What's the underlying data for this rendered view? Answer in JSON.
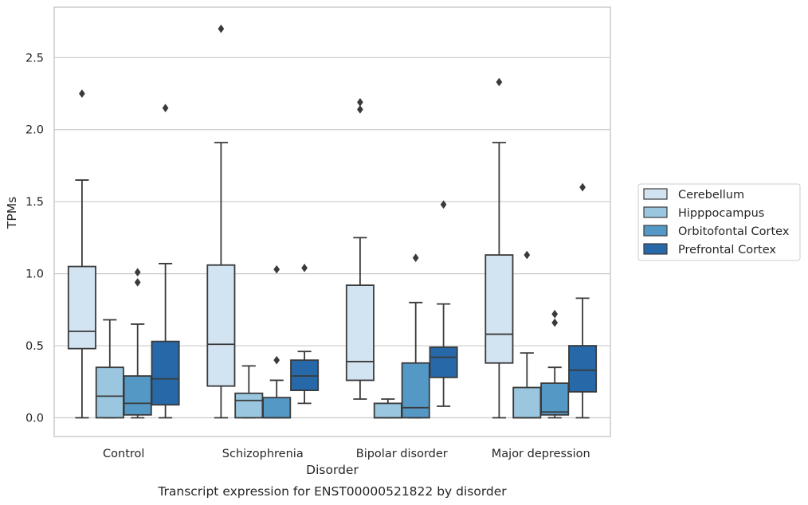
{
  "caption": "Transcript expression for ENST00000521822 by disorder",
  "chart_data": {
    "type": "boxplot",
    "xlabel": "Disorder",
    "ylabel": "TPMs",
    "ylim": [
      -0.13,
      2.85
    ],
    "yticks": [
      "0.0",
      "0.5",
      "1.0",
      "1.5",
      "2.0",
      "2.5"
    ],
    "grid": "horizontal",
    "legend_position": "right",
    "categories": [
      "Control",
      "Schizophrenia",
      "Bipolar disorder",
      "Major depression"
    ],
    "series": [
      {
        "name": "Cerebellum",
        "color": "#d2e3f2",
        "boxes": [
          {
            "whislo": 0.0,
            "q1": 0.48,
            "med": 0.6,
            "q3": 1.05,
            "whishi": 1.65,
            "fliers": [
              2.25
            ]
          },
          {
            "whislo": 0.0,
            "q1": 0.22,
            "med": 0.51,
            "q3": 1.06,
            "whishi": 1.91,
            "fliers": [
              2.7
            ]
          },
          {
            "whislo": 0.13,
            "q1": 0.26,
            "med": 0.39,
            "q3": 0.92,
            "whishi": 1.25,
            "fliers": [
              2.19,
              2.14
            ]
          },
          {
            "whislo": 0.0,
            "q1": 0.38,
            "med": 0.58,
            "q3": 1.13,
            "whishi": 1.91,
            "fliers": [
              2.33
            ]
          }
        ]
      },
      {
        "name": "Hipppocampus",
        "color": "#9ac7df",
        "boxes": [
          {
            "whislo": 0.0,
            "q1": 0.0,
            "med": 0.15,
            "q3": 0.35,
            "whishi": 0.68,
            "fliers": []
          },
          {
            "whislo": 0.0,
            "q1": 0.0,
            "med": 0.12,
            "q3": 0.17,
            "whishi": 0.36,
            "fliers": []
          },
          {
            "whislo": 0.0,
            "q1": 0.0,
            "med": 0.0,
            "q3": 0.1,
            "whishi": 0.13,
            "fliers": []
          },
          {
            "whislo": 0.0,
            "q1": 0.0,
            "med": 0.0,
            "q3": 0.21,
            "whishi": 0.45,
            "fliers": [
              1.13
            ]
          }
        ]
      },
      {
        "name": "Orbitofontal Cortex",
        "color": "#5498c6",
        "boxes": [
          {
            "whislo": 0.0,
            "q1": 0.02,
            "med": 0.1,
            "q3": 0.29,
            "whishi": 0.65,
            "fliers": [
              1.01,
              0.94
            ]
          },
          {
            "whislo": 0.0,
            "q1": 0.0,
            "med": 0.0,
            "q3": 0.14,
            "whishi": 0.26,
            "fliers": [
              1.03,
              0.4
            ]
          },
          {
            "whislo": 0.0,
            "q1": 0.0,
            "med": 0.07,
            "q3": 0.38,
            "whishi": 0.8,
            "fliers": [
              1.11
            ]
          },
          {
            "whislo": 0.0,
            "q1": 0.02,
            "med": 0.04,
            "q3": 0.24,
            "whishi": 0.35,
            "fliers": [
              0.72,
              0.66
            ]
          }
        ]
      },
      {
        "name": "Prefrontal Cortex",
        "color": "#2668a8",
        "boxes": [
          {
            "whislo": 0.0,
            "q1": 0.09,
            "med": 0.27,
            "q3": 0.53,
            "whishi": 1.07,
            "fliers": [
              2.15
            ]
          },
          {
            "whislo": 0.1,
            "q1": 0.19,
            "med": 0.29,
            "q3": 0.4,
            "whishi": 0.46,
            "fliers": [
              1.04
            ]
          },
          {
            "whislo": 0.08,
            "q1": 0.28,
            "med": 0.42,
            "q3": 0.49,
            "whishi": 0.79,
            "fliers": [
              1.48
            ]
          },
          {
            "whislo": 0.0,
            "q1": 0.18,
            "med": 0.33,
            "q3": 0.5,
            "whishi": 0.83,
            "fliers": [
              1.6
            ]
          }
        ]
      }
    ]
  }
}
